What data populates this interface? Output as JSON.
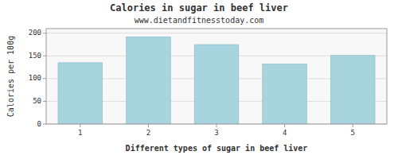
{
  "chart_data": {
    "type": "bar",
    "title": "Calories in sugar in beef liver",
    "subtitle": "www.dietandfitnesstoday.com",
    "xlabel": "Different types of sugar in beef liver",
    "ylabel": "Calories per 100g",
    "categories": [
      "1",
      "2",
      "3",
      "4",
      "5"
    ],
    "values": [
      135,
      192,
      175,
      132,
      151
    ],
    "color": "#a8d4de",
    "ylim": [
      0,
      210
    ],
    "yticks": [
      0,
      50,
      100,
      150,
      200
    ],
    "grid": true
  }
}
